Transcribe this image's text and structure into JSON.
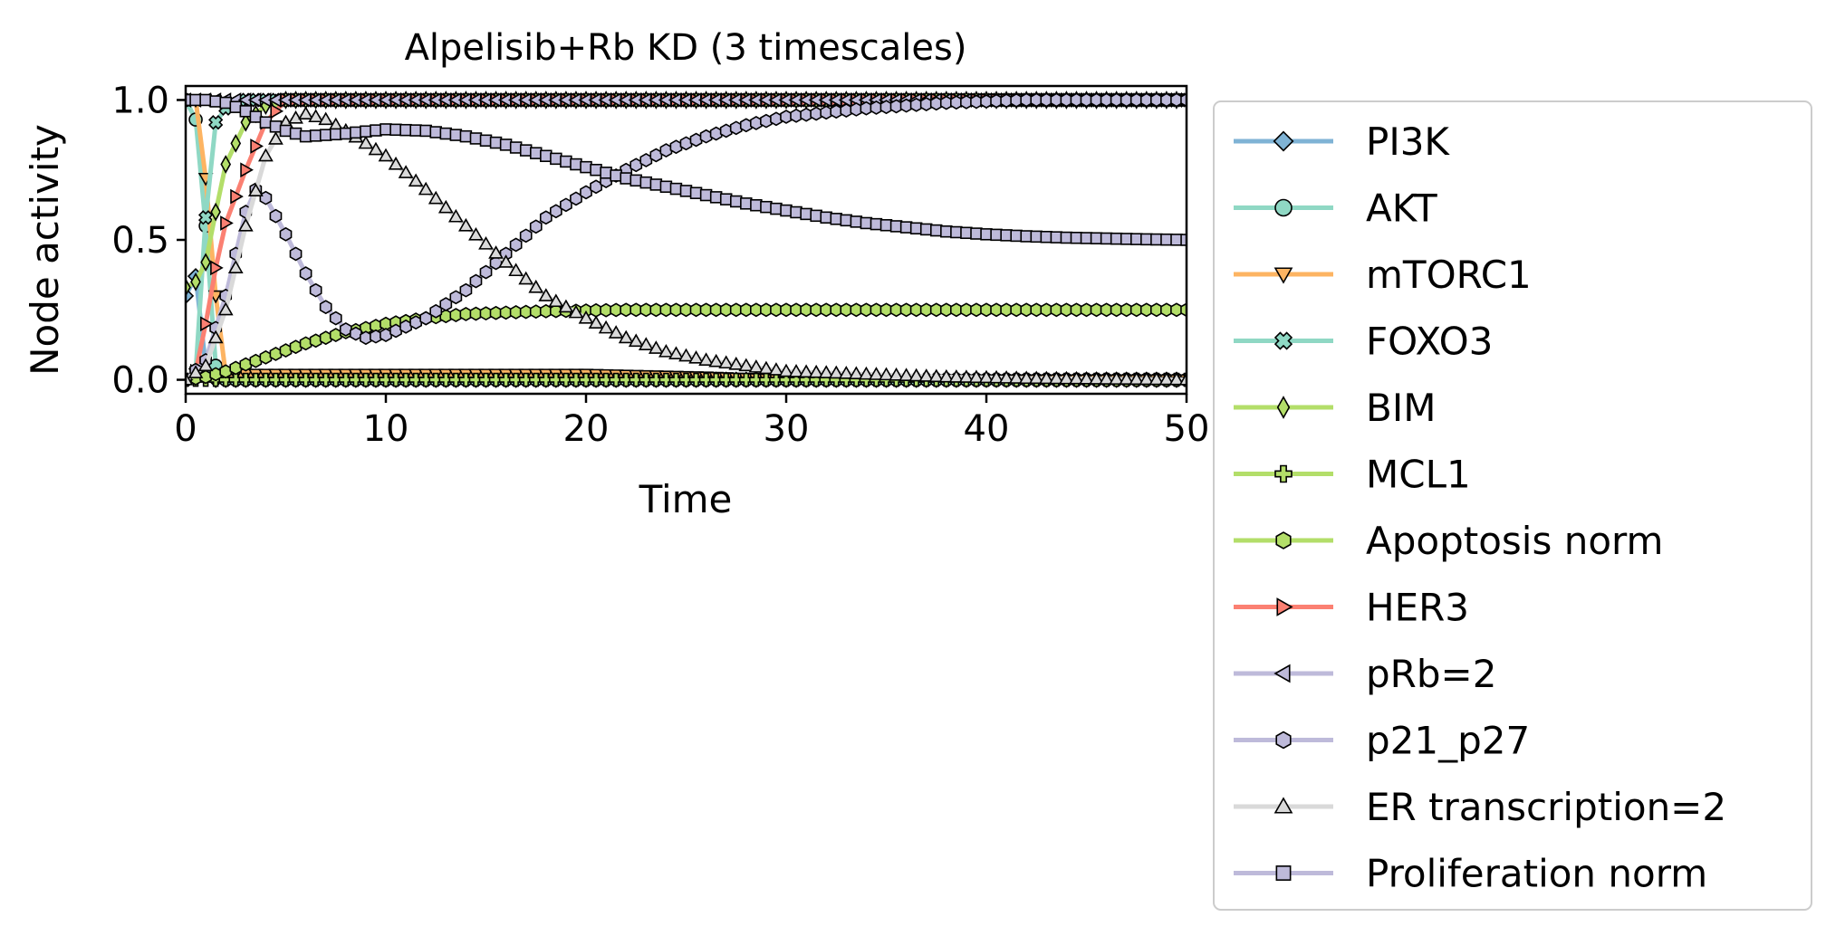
{
  "chart_data": {
    "type": "line",
    "title": "Alpelisib+Rb KD (3 timescales)",
    "xlabel": "Time",
    "ylabel": "Node activity",
    "xlim": [
      0,
      50
    ],
    "ylim": [
      -0.05,
      1.05
    ],
    "xticks": [
      "0",
      "10",
      "20",
      "30",
      "40",
      "50"
    ],
    "yticks": [
      "0.0",
      "0.5",
      "1.0"
    ],
    "grid": false,
    "legend_position": "outside-right",
    "series": [
      {
        "name": "PI3K",
        "color": "#7fb3d5",
        "marker": "diamond",
        "points": [
          [
            0,
            0.3
          ],
          [
            0.5,
            0.37
          ],
          [
            1,
            0.05
          ],
          [
            1.5,
            0
          ],
          [
            50,
            0
          ]
        ]
      },
      {
        "name": "AKT",
        "color": "#8fd8c4",
        "marker": "circle",
        "points": [
          [
            0,
            1.0
          ],
          [
            0.5,
            0.93
          ],
          [
            1,
            0.55
          ],
          [
            1.5,
            0.05
          ],
          [
            2,
            0
          ],
          [
            50,
            0
          ]
        ]
      },
      {
        "name": "mTORC1",
        "color": "#fdb462",
        "marker": "triangle-down",
        "points": [
          [
            0,
            1.0
          ],
          [
            0.5,
            1.0
          ],
          [
            1,
            0.72
          ],
          [
            1.5,
            0.3
          ],
          [
            2,
            0.02
          ],
          [
            10,
            0.02
          ],
          [
            20,
            0.02
          ],
          [
            26,
            0.01
          ],
          [
            30,
            0
          ],
          [
            50,
            0
          ]
        ]
      },
      {
        "name": "FOXO3",
        "color": "#8fd8c4",
        "marker": "x",
        "points": [
          [
            0,
            0
          ],
          [
            0.5,
            0.03
          ],
          [
            1,
            0.58
          ],
          [
            1.5,
            0.92
          ],
          [
            2,
            0.97
          ],
          [
            3,
            1.0
          ],
          [
            50,
            1.0
          ]
        ]
      },
      {
        "name": "BIM",
        "color": "#b3de69",
        "marker": "thin-diamond",
        "points": [
          [
            0,
            0.33
          ],
          [
            0.5,
            0.35
          ],
          [
            1,
            0.42
          ],
          [
            1.5,
            0.6
          ],
          [
            2,
            0.77
          ],
          [
            3,
            0.92
          ],
          [
            4,
            0.98
          ],
          [
            5,
            1.0
          ],
          [
            50,
            1.0
          ]
        ]
      },
      {
        "name": "MCL1",
        "color": "#b3de69",
        "marker": "plus",
        "points": [
          [
            0,
            0
          ],
          [
            0.5,
            0
          ],
          [
            50,
            0
          ]
        ]
      },
      {
        "name": "Apoptosis norm",
        "color": "#b3de69",
        "marker": "hexagon",
        "points": [
          [
            0,
            0
          ],
          [
            1,
            0.01
          ],
          [
            2,
            0.03
          ],
          [
            4,
            0.08
          ],
          [
            6,
            0.13
          ],
          [
            8,
            0.17
          ],
          [
            10,
            0.2
          ],
          [
            12,
            0.22
          ],
          [
            14,
            0.235
          ],
          [
            16,
            0.24
          ],
          [
            18,
            0.245
          ],
          [
            22,
            0.25
          ],
          [
            50,
            0.25
          ]
        ]
      },
      {
        "name": "HER3",
        "color": "#fb8072",
        "marker": "triangle-right",
        "points": [
          [
            0,
            0
          ],
          [
            0.5,
            0.03
          ],
          [
            1,
            0.2
          ],
          [
            1.5,
            0.4
          ],
          [
            2,
            0.56
          ],
          [
            3,
            0.75
          ],
          [
            4,
            0.92
          ],
          [
            5,
            1.0
          ],
          [
            50,
            1.0
          ]
        ]
      },
      {
        "name": "pRb=2",
        "color": "#bebada",
        "marker": "triangle-left",
        "points": [
          [
            0,
            1.0
          ],
          [
            50,
            1.0
          ]
        ]
      },
      {
        "name": "p21_p27",
        "color": "#bebada",
        "marker": "hexagon",
        "points": [
          [
            0,
            0
          ],
          [
            1,
            0.07
          ],
          [
            2,
            0.3
          ],
          [
            3,
            0.6
          ],
          [
            3.5,
            0.68
          ],
          [
            4,
            0.65
          ],
          [
            5,
            0.52
          ],
          [
            6,
            0.38
          ],
          [
            7,
            0.26
          ],
          [
            8,
            0.18
          ],
          [
            9,
            0.15
          ],
          [
            10,
            0.16
          ],
          [
            12,
            0.22
          ],
          [
            14,
            0.32
          ],
          [
            16,
            0.45
          ],
          [
            18,
            0.58
          ],
          [
            20,
            0.67
          ],
          [
            22,
            0.75
          ],
          [
            24,
            0.82
          ],
          [
            26,
            0.87
          ],
          [
            28,
            0.91
          ],
          [
            30,
            0.94
          ],
          [
            34,
            0.97
          ],
          [
            38,
            0.99
          ],
          [
            42,
            1.0
          ],
          [
            50,
            1.0
          ]
        ]
      },
      {
        "name": "ER transcription=2",
        "color": "#d9d9d9",
        "marker": "triangle",
        "points": [
          [
            0,
            0
          ],
          [
            1,
            0.05
          ],
          [
            2,
            0.25
          ],
          [
            3,
            0.55
          ],
          [
            4,
            0.8
          ],
          [
            5,
            0.92
          ],
          [
            6,
            0.95
          ],
          [
            7,
            0.93
          ],
          [
            8,
            0.89
          ],
          [
            10,
            0.8
          ],
          [
            12,
            0.68
          ],
          [
            14,
            0.55
          ],
          [
            16,
            0.42
          ],
          [
            18,
            0.3
          ],
          [
            20,
            0.22
          ],
          [
            22,
            0.15
          ],
          [
            24,
            0.1
          ],
          [
            26,
            0.07
          ],
          [
            28,
            0.05
          ],
          [
            30,
            0.03
          ],
          [
            34,
            0.02
          ],
          [
            38,
            0.01
          ],
          [
            42,
            0.005
          ],
          [
            50,
            0
          ]
        ]
      },
      {
        "name": "Proliferation norm",
        "color": "#bebada",
        "marker": "square",
        "points": [
          [
            0,
            1.0
          ],
          [
            1,
            1.0
          ],
          [
            2,
            0.99
          ],
          [
            3,
            0.96
          ],
          [
            4,
            0.92
          ],
          [
            5,
            0.89
          ],
          [
            6,
            0.87
          ],
          [
            8,
            0.88
          ],
          [
            10,
            0.895
          ],
          [
            12,
            0.89
          ],
          [
            14,
            0.87
          ],
          [
            16,
            0.84
          ],
          [
            18,
            0.8
          ],
          [
            20,
            0.76
          ],
          [
            22,
            0.72
          ],
          [
            24,
            0.69
          ],
          [
            26,
            0.66
          ],
          [
            28,
            0.63
          ],
          [
            30,
            0.605
          ],
          [
            32,
            0.58
          ],
          [
            34,
            0.56
          ],
          [
            36,
            0.545
          ],
          [
            38,
            0.53
          ],
          [
            40,
            0.52
          ],
          [
            42,
            0.513
          ],
          [
            44,
            0.508
          ],
          [
            46,
            0.505
          ],
          [
            48,
            0.502
          ],
          [
            50,
            0.5
          ]
        ]
      }
    ]
  }
}
